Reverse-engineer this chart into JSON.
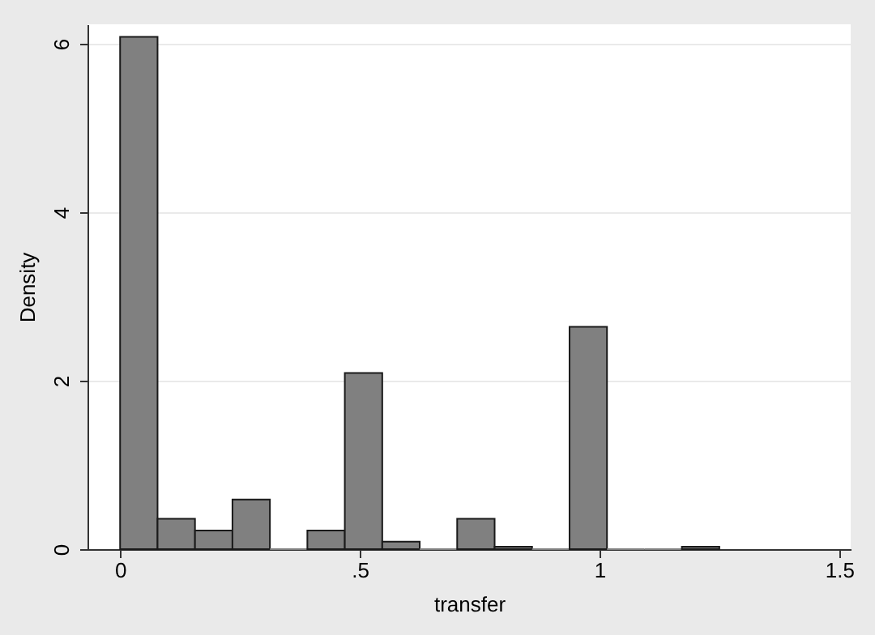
{
  "chart_data": {
    "type": "histogram",
    "xlabel": "transfer",
    "ylabel": "Density",
    "bins": [
      0,
      0.078125,
      0.15625,
      0.234375,
      0.3125,
      0.390625,
      0.46875,
      0.546875,
      0.625,
      0.703125,
      0.78125,
      0.859375,
      0.9375,
      1.015625,
      1.09375,
      1.171875,
      1.25
    ],
    "values": [
      6.08,
      0.36,
      0.22,
      0.59,
      0,
      0.22,
      2.09,
      0.09,
      0,
      0.36,
      0.03,
      0,
      2.64,
      0,
      0,
      0.03
    ],
    "color": "#808080",
    "xlim": [
      -0.068,
      1.524
    ],
    "xticks": [
      0,
      {
        "value": 0.5,
        "label": ".5"
      },
      1,
      {
        "value": 1.5,
        "label": "1.5"
      }
    ],
    "ylim": [
      0,
      6.23
    ],
    "yticks": [
      0,
      2,
      4,
      6
    ],
    "grid": "y"
  }
}
